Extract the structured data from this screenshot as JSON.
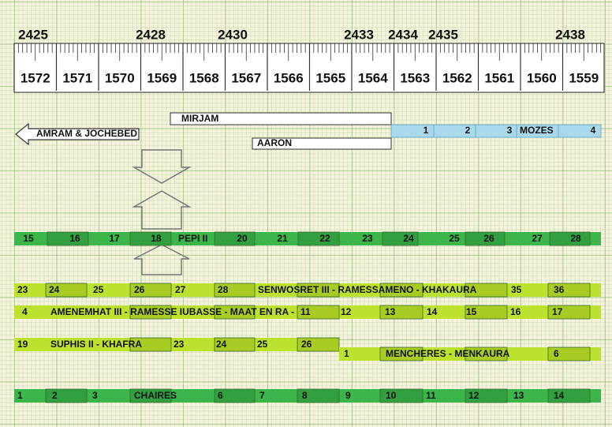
{
  "ruler": {
    "years": [
      "2425",
      "2428",
      "2430",
      "2433",
      "2434",
      "2435",
      "2438"
    ],
    "columns": [
      "1572",
      "1571",
      "1570",
      "1569",
      "1568",
      "1567",
      "1566",
      "1565",
      "1564",
      "1563",
      "1562",
      "1561",
      "1560",
      "1559"
    ]
  },
  "persons": {
    "amram": "AMRAM & JOCHEBED",
    "mirjam": "MIRJAM",
    "aaron": "AARON",
    "mozes": [
      "1",
      "2",
      "3",
      "MOZES",
      "4"
    ]
  },
  "rows": [
    [
      "15",
      "16",
      "17",
      "18",
      "PEPI II",
      "20",
      "21",
      "22",
      "23",
      "24",
      "25",
      "26",
      "27",
      "28"
    ],
    [
      "23",
      "24",
      "25",
      "26",
      "27",
      "28",
      "SENWOSRET III - RAMESSAMENO - KHAKAURA",
      "35",
      "36"
    ],
    [
      "4",
      "AMENEMHAT III - RAMESSE IUBASSE - MAAT EN RA -",
      "11",
      "12",
      "13",
      "14",
      "15",
      "16",
      "17"
    ],
    [
      "19",
      "SUPHIS II - KHAFRA",
      "23",
      "24",
      "25",
      "26"
    ],
    [
      "1",
      "MENCHERES - MENKAURA",
      "6"
    ],
    [
      "1",
      "2",
      "3",
      "CHAIRES",
      "6",
      "7",
      "8",
      "9",
      "10",
      "11",
      "12",
      "13",
      "14"
    ]
  ]
}
